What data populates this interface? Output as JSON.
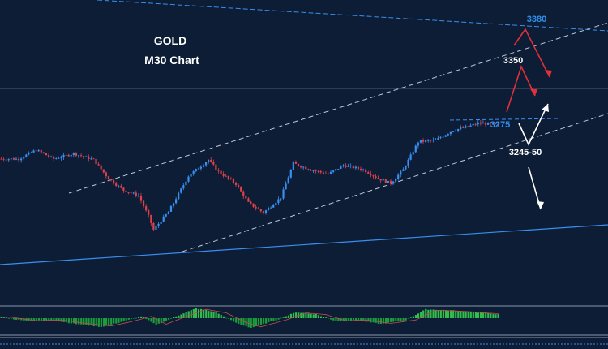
{
  "chart_data": {
    "type": "candlestick",
    "title": "GOLD",
    "subtitle": "M30 Chart",
    "symbol": "GOLD",
    "timeframe": "M30",
    "price_range": [
      3170,
      3400
    ],
    "levels": [
      {
        "label": "3380",
        "value": 3380,
        "color": "#2e8ff0"
      },
      {
        "label": "3350",
        "value": 3350,
        "color": "#ffffff"
      },
      {
        "label": "3275",
        "value": 3275,
        "color": "#2e8ff0"
      },
      {
        "label": "3245-50",
        "value": 3247,
        "color": "#ffffff"
      }
    ],
    "series": [
      {
        "name": "",
        "anchors": [
          [
            0,
            3277
          ],
          [
            8,
            3277
          ],
          [
            15,
            3287
          ],
          [
            22,
            3277
          ],
          [
            30,
            3283
          ],
          [
            38,
            3276
          ],
          [
            44,
            3255
          ],
          [
            50,
            3242
          ],
          [
            56,
            3236
          ],
          [
            60,
            3213
          ],
          [
            62,
            3198
          ],
          [
            68,
            3218
          ],
          [
            76,
            3258
          ],
          [
            84,
            3276
          ],
          [
            88,
            3263
          ],
          [
            95,
            3249
          ],
          [
            100,
            3228
          ],
          [
            106,
            3217
          ],
          [
            113,
            3234
          ],
          [
            118,
            3272
          ],
          [
            125,
            3265
          ],
          [
            132,
            3260
          ],
          [
            138,
            3270
          ],
          [
            146,
            3265
          ],
          [
            152,
            3255
          ],
          [
            157,
            3250
          ],
          [
            162,
            3265
          ],
          [
            168,
            3296
          ],
          [
            175,
            3298
          ],
          [
            182,
            3309
          ],
          [
            188,
            3313
          ],
          [
            192,
            3317
          ],
          [
            196,
            3316
          ],
          [
            199,
            3315
          ]
        ]
      }
    ],
    "oscillator": {
      "type": "histogram",
      "anchors": [
        [
          0,
          0.1
        ],
        [
          10,
          -0.3
        ],
        [
          20,
          -0.2
        ],
        [
          30,
          -0.6
        ],
        [
          40,
          -0.9
        ],
        [
          48,
          -0.4
        ],
        [
          56,
          0.2
        ],
        [
          62,
          -0.7
        ],
        [
          70,
          0.2
        ],
        [
          78,
          1.0
        ],
        [
          86,
          0.6
        ],
        [
          94,
          -0.5
        ],
        [
          100,
          -1.0
        ],
        [
          110,
          -0.2
        ],
        [
          118,
          0.6
        ],
        [
          126,
          0.4
        ],
        [
          134,
          -0.3
        ],
        [
          142,
          -0.2
        ],
        [
          152,
          -0.6
        ],
        [
          162,
          -0.2
        ],
        [
          170,
          0.9
        ],
        [
          180,
          0.8
        ],
        [
          190,
          0.6
        ],
        [
          199,
          0.4
        ]
      ],
      "colors": {
        "positive": "#2fbf4a",
        "negative": "#1a9e3a"
      }
    },
    "colors": {
      "bull": "#3a8ef0",
      "bear": "#e0404a",
      "channel": "#bfc8d6",
      "trendline": "#3a8ef0",
      "arrow_bear": "#e0303a",
      "arrow_bull": "#ffffff"
    },
    "grid": false,
    "legend": "none"
  }
}
